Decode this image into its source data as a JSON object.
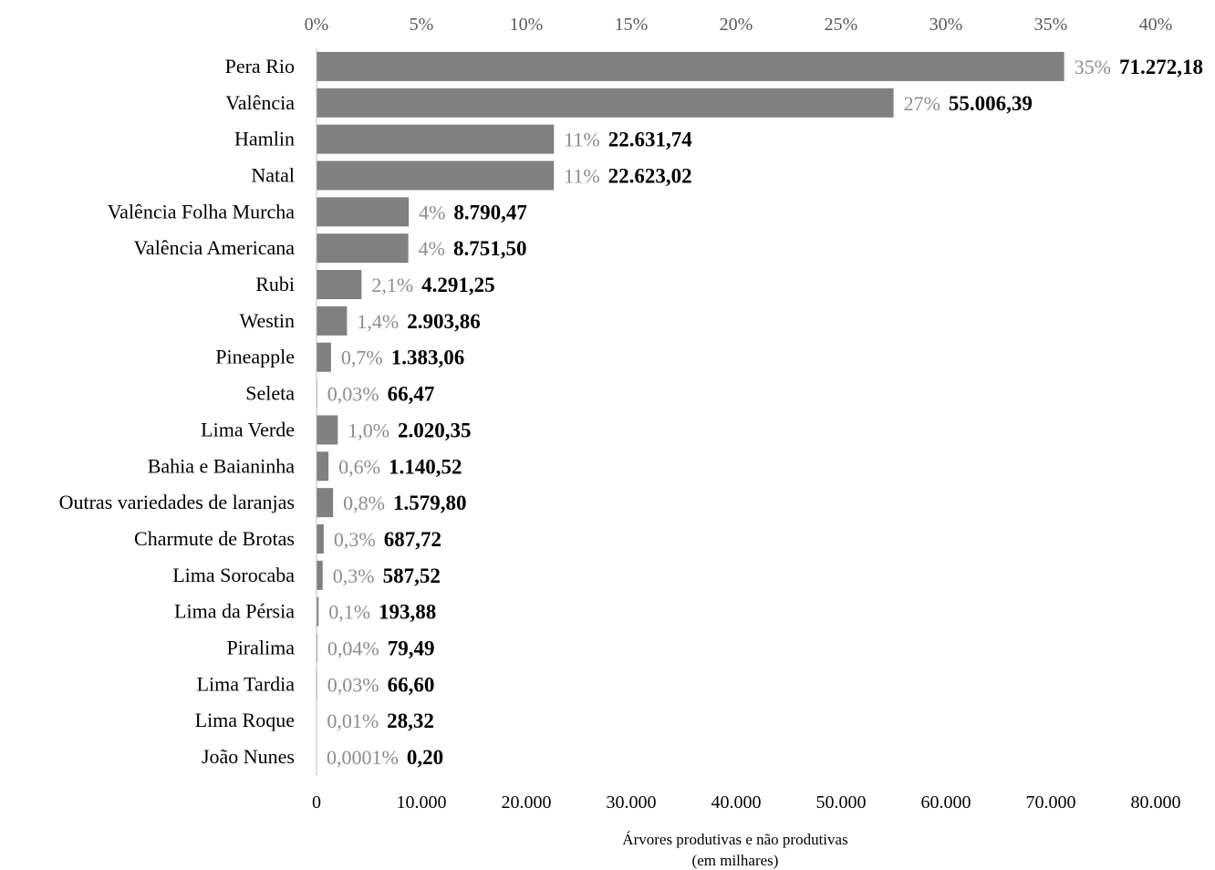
{
  "chart_data": {
    "type": "bar",
    "orientation": "horizontal",
    "categories": [
      "Pera Rio",
      "Valência",
      "Hamlin",
      "Natal",
      "Valência Folha Murcha",
      "Valência Americana",
      "Rubi",
      "Westin",
      "Pineapple",
      "Seleta",
      "Lima Verde",
      "Bahia e Baianinha",
      "Outras variedades de laranjas",
      "Charmute de Brotas",
      "Lima Sorocaba",
      "Lima da Pérsia",
      "Piralima",
      "Lima Tardia",
      "Lima Roque",
      "João Nunes"
    ],
    "values": [
      71272.18,
      55006.39,
      22631.74,
      22623.02,
      8790.47,
      8751.5,
      4291.25,
      2903.86,
      1383.06,
      66.47,
      2020.35,
      1140.52,
      1579.8,
      687.72,
      587.52,
      193.88,
      79.49,
      66.6,
      28.32,
      0.2
    ],
    "value_labels": [
      "71.272,18",
      "55.006,39",
      "22.631,74",
      "22.623,02",
      "8.790,47",
      "8.751,50",
      "4.291,25",
      "2.903,86",
      "1.383,06",
      "66,47",
      "2.020,35",
      "1.140,52",
      "1.579,80",
      "687,72",
      "587,52",
      "193,88",
      "79,49",
      "66,60",
      "28,32",
      "0,20"
    ],
    "percent_labels": [
      "35%",
      "27%",
      "11%",
      "11%",
      "4%",
      "4%",
      "2,1%",
      "1,4%",
      "0,7%",
      "0,03%",
      "1,0%",
      "0,6%",
      "0,8%",
      "0,3%",
      "0,3%",
      "0,1%",
      "0,04%",
      "0,03%",
      "0,01%",
      "0,0001%"
    ],
    "xlabel": [
      "Árvores produtivas e não produtivas",
      "(em milhares)"
    ],
    "xlim": [
      0,
      80000
    ],
    "x_ticks": [
      "0",
      "10.000",
      "20.000",
      "30.000",
      "40.000",
      "50.000",
      "60.000",
      "70.000",
      "80.000"
    ],
    "secondary_x_ticks": [
      "0%",
      "5%",
      "10%",
      "15%",
      "20%",
      "25%",
      "30%",
      "35%",
      "40%"
    ],
    "secondary_xlim": [
      0,
      40
    ],
    "grid": false,
    "legend": "none",
    "colors": {
      "bar": "#808080",
      "percent_text": "#8c8c8c",
      "axis": "#bfbfbf"
    }
  }
}
